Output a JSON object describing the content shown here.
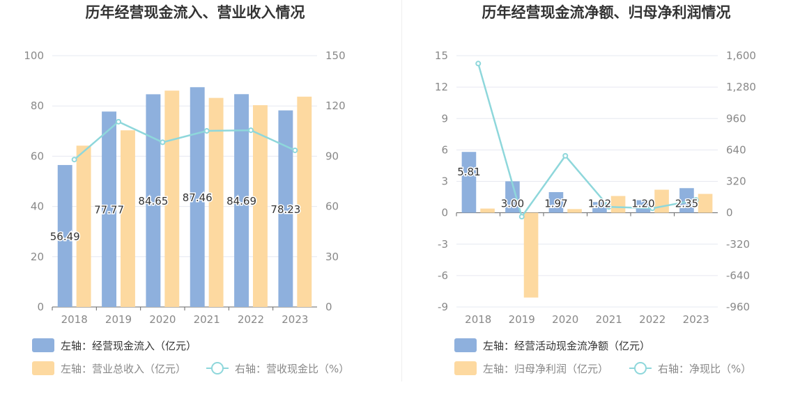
{
  "colors": {
    "bar_blue": "#8eb0dd",
    "bar_orange": "#fdd9a0",
    "line": "#8ed7db",
    "grid": "#e6e8f0",
    "axis_text": "#888888",
    "title": "#333333",
    "label_text": "#333333"
  },
  "chart_data": [
    {
      "type": "bar",
      "title": "历年经营现金流入、营业收入情况",
      "categories": [
        "2018",
        "2019",
        "2020",
        "2021",
        "2022",
        "2023"
      ],
      "left_axis": {
        "ticks": [
          "100",
          "80",
          "60",
          "40",
          "20",
          "0"
        ],
        "ylim": [
          0,
          100
        ]
      },
      "right_axis": {
        "ticks": [
          "150",
          "120",
          "90",
          "60",
          "30",
          "0"
        ],
        "ylim": [
          0,
          150
        ]
      },
      "series": [
        {
          "name": "左轴：经营现金流入（亿元）",
          "kind": "bar",
          "axis": "left",
          "values": [
            56.49,
            77.77,
            84.65,
            87.46,
            84.69,
            78.23
          ],
          "labels": [
            "56.49",
            "77.77",
            "84.65",
            "87.46",
            "84.69",
            "78.23"
          ]
        },
        {
          "name": "左轴：营业总收入（亿元）",
          "kind": "bar",
          "axis": "left",
          "values": [
            64.2,
            70.3,
            86.1,
            83.2,
            80.3,
            83.7
          ]
        },
        {
          "name": "右轴：营收现金比（%）",
          "kind": "line",
          "axis": "right",
          "values": [
            88.0,
            110.6,
            98.3,
            105.1,
            105.5,
            93.5
          ]
        }
      ]
    },
    {
      "type": "bar",
      "title": "历年经营现金流净额、归母净利润情况",
      "categories": [
        "2018",
        "2019",
        "2020",
        "2021",
        "2022",
        "2023"
      ],
      "left_axis": {
        "ticks": [
          "15",
          "12",
          "9",
          "6",
          "3",
          "0",
          "-3",
          "-6",
          "-9"
        ],
        "ylim": [
          -9,
          15
        ]
      },
      "right_axis": {
        "ticks": [
          "1,600",
          "1,280",
          "960",
          "640",
          "320",
          "0",
          "-320",
          "-640",
          "-960"
        ],
        "ylim": [
          -960,
          1600
        ]
      },
      "series": [
        {
          "name": "左轴：经营活动现金流净额（亿元）",
          "kind": "bar",
          "axis": "left",
          "values": [
            5.81,
            3.0,
            1.97,
            1.02,
            1.2,
            2.35
          ],
          "labels": [
            "5.81",
            "3.00",
            "1.97",
            "1.02",
            "1.20",
            "2.35"
          ]
        },
        {
          "name": "左轴：归母净利润（亿元）",
          "kind": "bar",
          "axis": "left",
          "values": [
            0.4,
            -8.1,
            0.35,
            1.6,
            2.2,
            1.8
          ]
        },
        {
          "name": "右轴：净现比（%）",
          "kind": "line",
          "axis": "right",
          "values": [
            1520,
            -40,
            580,
            60,
            45,
            130
          ]
        }
      ]
    }
  ]
}
